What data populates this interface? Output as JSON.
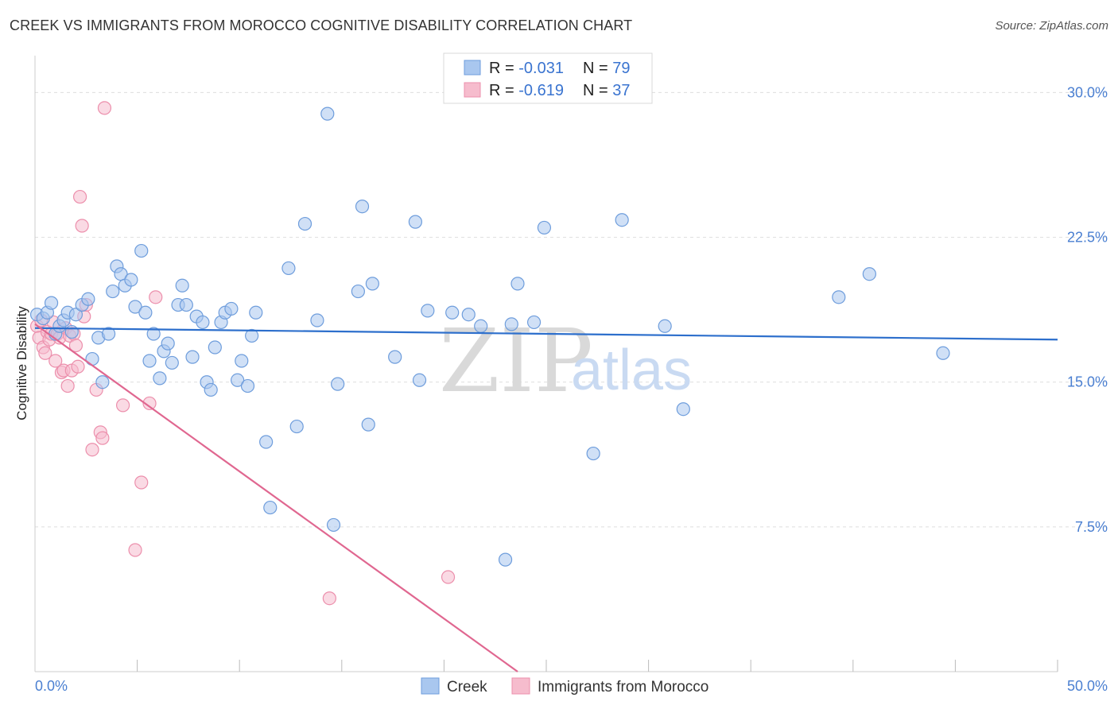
{
  "title": "CREEK VS IMMIGRANTS FROM MOROCCO COGNITIVE DISABILITY CORRELATION CHART",
  "source": "Source: ZipAtlas.com",
  "watermark": {
    "zip": "ZIP",
    "atlas": "atlas"
  },
  "colors": {
    "creek_fill": "#a9c7ef",
    "creek_stroke": "#6e9ddc",
    "creek_line": "#2d6fcc",
    "morocco_fill": "#f6bccd",
    "morocco_stroke": "#ec8fac",
    "morocco_line": "#e06790",
    "grid": "#dddddd",
    "axis_text": "#4a7fd1"
  },
  "stats_box": [
    {
      "r_label": "R = ",
      "r_value": "-0.031",
      "n_label": "N = ",
      "n_value": "79"
    },
    {
      "r_label": "R = ",
      "r_value": "-0.619",
      "n_label": "N = ",
      "n_value": "37"
    }
  ],
  "chart_data": {
    "type": "scatter",
    "title": "CREEK VS IMMIGRANTS FROM MOROCCO COGNITIVE DISABILITY CORRELATION CHART",
    "xlabel": "",
    "ylabel": "Cognitive Disability",
    "xlim": [
      0,
      50
    ],
    "ylim": [
      0,
      31.5
    ],
    "x_tick_labels": [
      "0.0%",
      "50.0%"
    ],
    "y_ticks": [
      7.5,
      15.0,
      22.5,
      30.0
    ],
    "y_tick_labels": [
      "7.5%",
      "15.0%",
      "22.5%",
      "30.0%"
    ],
    "grid": true,
    "legend": [
      "Creek",
      "Immigrants from Morocco"
    ],
    "series": [
      {
        "name": "Creek",
        "trend": {
          "x": [
            0,
            50
          ],
          "y": [
            17.8,
            17.2
          ]
        },
        "points": [
          [
            0.1,
            18.5
          ],
          [
            0.4,
            18.3
          ],
          [
            0.6,
            18.6
          ],
          [
            0.8,
            19.1
          ],
          [
            1.0,
            17.5
          ],
          [
            1.2,
            17.9
          ],
          [
            1.4,
            18.2
          ],
          [
            1.6,
            18.6
          ],
          [
            1.8,
            17.6
          ],
          [
            2.0,
            18.5
          ],
          [
            2.3,
            19.0
          ],
          [
            2.6,
            19.3
          ],
          [
            2.8,
            16.2
          ],
          [
            3.1,
            17.3
          ],
          [
            3.3,
            15.0
          ],
          [
            3.6,
            17.5
          ],
          [
            3.8,
            19.7
          ],
          [
            4.0,
            21.0
          ],
          [
            4.2,
            20.6
          ],
          [
            4.4,
            20.0
          ],
          [
            4.7,
            20.3
          ],
          [
            4.9,
            18.9
          ],
          [
            5.2,
            21.8
          ],
          [
            5.4,
            18.6
          ],
          [
            5.6,
            16.1
          ],
          [
            5.8,
            17.5
          ],
          [
            6.1,
            15.2
          ],
          [
            6.3,
            16.6
          ],
          [
            6.5,
            17.0
          ],
          [
            6.7,
            16.0
          ],
          [
            7.0,
            19.0
          ],
          [
            7.2,
            20.0
          ],
          [
            7.4,
            19.0
          ],
          [
            7.7,
            16.3
          ],
          [
            7.9,
            18.4
          ],
          [
            8.2,
            18.1
          ],
          [
            8.4,
            15.0
          ],
          [
            8.6,
            14.6
          ],
          [
            8.8,
            16.8
          ],
          [
            9.1,
            18.1
          ],
          [
            9.3,
            18.6
          ],
          [
            9.6,
            18.8
          ],
          [
            9.9,
            15.1
          ],
          [
            10.1,
            16.1
          ],
          [
            10.4,
            14.8
          ],
          [
            10.6,
            17.4
          ],
          [
            10.8,
            18.6
          ],
          [
            11.3,
            11.9
          ],
          [
            11.5,
            8.5
          ],
          [
            12.4,
            20.9
          ],
          [
            12.8,
            12.7
          ],
          [
            13.2,
            23.2
          ],
          [
            13.8,
            18.2
          ],
          [
            14.3,
            28.9
          ],
          [
            14.6,
            7.6
          ],
          [
            14.8,
            14.9
          ],
          [
            15.8,
            19.7
          ],
          [
            16.0,
            24.1
          ],
          [
            16.3,
            12.8
          ],
          [
            16.5,
            20.1
          ],
          [
            17.6,
            16.3
          ],
          [
            18.6,
            23.3
          ],
          [
            18.8,
            15.1
          ],
          [
            19.2,
            18.7
          ],
          [
            20.4,
            18.6
          ],
          [
            21.2,
            18.5
          ],
          [
            21.8,
            17.9
          ],
          [
            23.0,
            5.8
          ],
          [
            23.3,
            18.0
          ],
          [
            23.6,
            20.1
          ],
          [
            24.4,
            18.1
          ],
          [
            24.9,
            23.0
          ],
          [
            27.3,
            11.3
          ],
          [
            28.7,
            23.4
          ],
          [
            30.8,
            17.9
          ],
          [
            31.7,
            13.6
          ],
          [
            39.3,
            19.4
          ],
          [
            40.8,
            20.6
          ],
          [
            44.4,
            16.5
          ]
        ]
      },
      {
        "name": "Immigrants from Morocco",
        "trend": {
          "x": [
            0,
            23.6
          ],
          "y": [
            18.0,
            0.0
          ]
        },
        "points": [
          [
            0.1,
            17.9
          ],
          [
            0.2,
            17.3
          ],
          [
            0.3,
            18.2
          ],
          [
            0.4,
            16.8
          ],
          [
            0.5,
            16.5
          ],
          [
            0.6,
            17.6
          ],
          [
            0.7,
            17.2
          ],
          [
            0.8,
            17.5
          ],
          [
            0.9,
            18.1
          ],
          [
            1.0,
            16.1
          ],
          [
            1.1,
            17.5
          ],
          [
            1.2,
            17.3
          ],
          [
            1.3,
            15.5
          ],
          [
            1.4,
            15.6
          ],
          [
            1.5,
            17.8
          ],
          [
            1.6,
            14.8
          ],
          [
            1.7,
            17.4
          ],
          [
            1.8,
            15.6
          ],
          [
            1.9,
            17.5
          ],
          [
            2.0,
            16.9
          ],
          [
            2.1,
            15.8
          ],
          [
            2.2,
            24.6
          ],
          [
            2.3,
            23.1
          ],
          [
            2.4,
            18.4
          ],
          [
            2.5,
            19.0
          ],
          [
            2.8,
            11.5
          ],
          [
            3.0,
            14.6
          ],
          [
            3.2,
            12.4
          ],
          [
            3.3,
            12.1
          ],
          [
            3.4,
            29.2
          ],
          [
            4.3,
            13.8
          ],
          [
            4.9,
            6.3
          ],
          [
            5.2,
            9.8
          ],
          [
            5.6,
            13.9
          ],
          [
            5.9,
            19.4
          ],
          [
            14.4,
            3.8
          ],
          [
            20.2,
            4.9
          ]
        ]
      }
    ]
  }
}
